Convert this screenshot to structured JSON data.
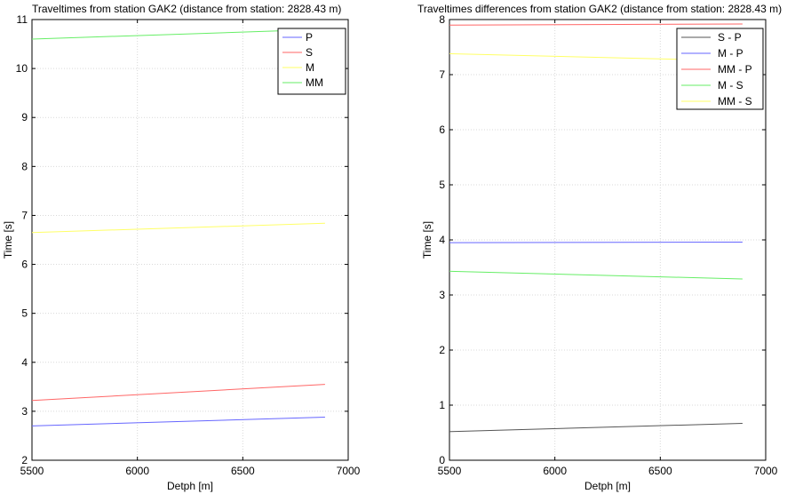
{
  "chart_data": [
    {
      "type": "line",
      "title": "Traveltimes from station GAK2 (distance from station: 2828.43 m)",
      "xlabel": "Detph [m]",
      "ylabel": "Time [s]",
      "xlim": [
        5500,
        7000
      ],
      "ylim": [
        2,
        11
      ],
      "xticks": [
        "5500",
        "6000",
        "6500",
        "7000"
      ],
      "yticks": [
        "2",
        "3",
        "4",
        "5",
        "6",
        "7",
        "8",
        "9",
        "10",
        "11"
      ],
      "grid": true,
      "legend_position": "top-right",
      "series": [
        {
          "name": "P",
          "color": "#6666ff",
          "x": [
            5500,
            6890
          ],
          "y": [
            2.7,
            2.88
          ]
        },
        {
          "name": "S",
          "color": "#ff6666",
          "x": [
            5500,
            6890
          ],
          "y": [
            3.22,
            3.55
          ]
        },
        {
          "name": "M",
          "color": "#ffff66",
          "x": [
            5500,
            6890
          ],
          "y": [
            6.65,
            6.84
          ]
        },
        {
          "name": "MM",
          "color": "#66ee66",
          "x": [
            5500,
            6890
          ],
          "y": [
            10.6,
            10.8
          ]
        }
      ]
    },
    {
      "type": "line",
      "title": "Traveltimes differences from station GAK2 (distance from station: 2828.43 m)",
      "xlabel": "Detph [m]",
      "ylabel": "Time [s]",
      "xlim": [
        5500,
        7000
      ],
      "ylim": [
        0,
        8
      ],
      "xticks": [
        "5500",
        "6000",
        "6500",
        "7000"
      ],
      "yticks": [
        "0",
        "1",
        "2",
        "3",
        "4",
        "5",
        "6",
        "7",
        "8"
      ],
      "grid": true,
      "legend_position": "top-right",
      "series": [
        {
          "name": "S - P",
          "color": "#555555",
          "x": [
            5500,
            6890
          ],
          "y": [
            0.52,
            0.67
          ]
        },
        {
          "name": "M - P",
          "color": "#6666ff",
          "x": [
            5500,
            6890
          ],
          "y": [
            3.95,
            3.96
          ]
        },
        {
          "name": "MM - P",
          "color": "#ff6666",
          "x": [
            5500,
            6890
          ],
          "y": [
            7.9,
            7.92
          ]
        },
        {
          "name": "M - S",
          "color": "#66ee66",
          "x": [
            5500,
            6890
          ],
          "y": [
            3.43,
            3.29
          ]
        },
        {
          "name": "MM - S",
          "color": "#ffff66",
          "x": [
            5500,
            6890
          ],
          "y": [
            7.38,
            7.25
          ]
        }
      ]
    }
  ]
}
